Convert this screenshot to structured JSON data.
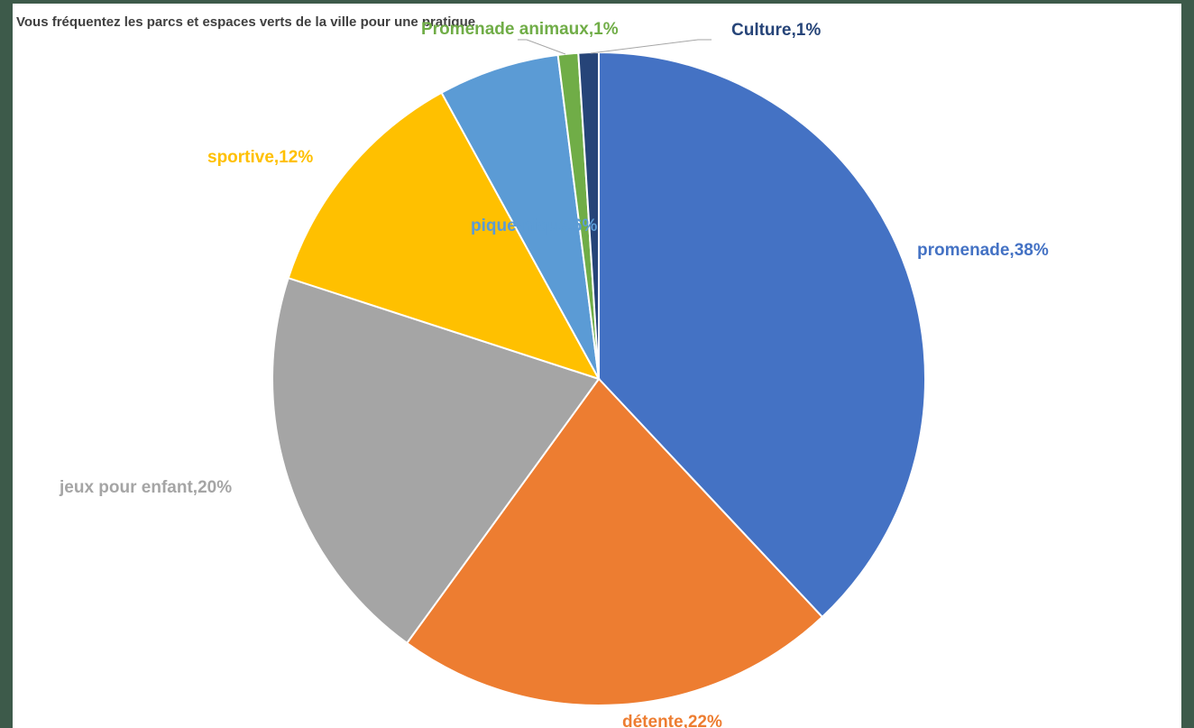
{
  "chart_data": {
    "type": "pie",
    "title": "Vous fréquentez les parcs et espaces verts de la ville pour une pratique",
    "slices": [
      {
        "label": "promenade,38%",
        "value": 38,
        "color": "#4472c4"
      },
      {
        "label": "détente,22%",
        "value": 22,
        "color": "#ed7d31"
      },
      {
        "label": "jeux pour enfant,20%",
        "value": 20,
        "color": "#a5a5a5"
      },
      {
        "label": "sportive,12%",
        "value": 12,
        "color": "#ffc000"
      },
      {
        "label": "pique-nique,6%",
        "value": 6,
        "color": "#5b9bd5"
      },
      {
        "label": "Promenade animaux,1%",
        "value": 1,
        "color": "#70ad47"
      },
      {
        "label": "Culture,1%",
        "value": 1,
        "color": "#264478"
      }
    ]
  }
}
